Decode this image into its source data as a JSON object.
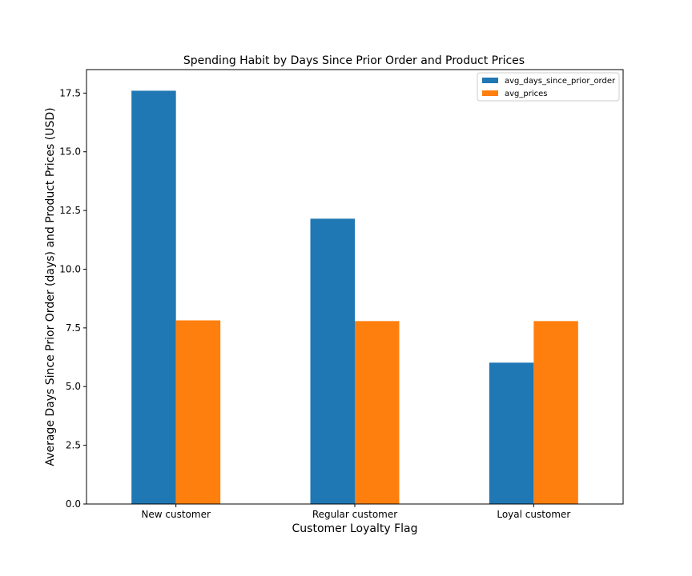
{
  "chart_data": {
    "type": "bar",
    "title": "Spending Habit by Days Since Prior Order and Product Prices",
    "xlabel": "Customer Loyalty Flag",
    "ylabel": "Average Days Since Prior Order (days) and Product Prices (USD)",
    "categories": [
      "New customer",
      "Regular customer",
      "Loyal customer"
    ],
    "series": [
      {
        "name": "avg_days_since_prior_order",
        "color": "#1f77b4",
        "values": [
          17.6,
          12.15,
          6.02
        ]
      },
      {
        "name": "avg_prices",
        "color": "#ff7f0e",
        "values": [
          7.82,
          7.79,
          7.79
        ]
      }
    ],
    "ylim": [
      0,
      18.5
    ],
    "yticks": [
      "0.0",
      "2.5",
      "5.0",
      "7.5",
      "10.0",
      "12.5",
      "15.0",
      "17.5"
    ],
    "grid": false,
    "legend_position": "top-right"
  }
}
